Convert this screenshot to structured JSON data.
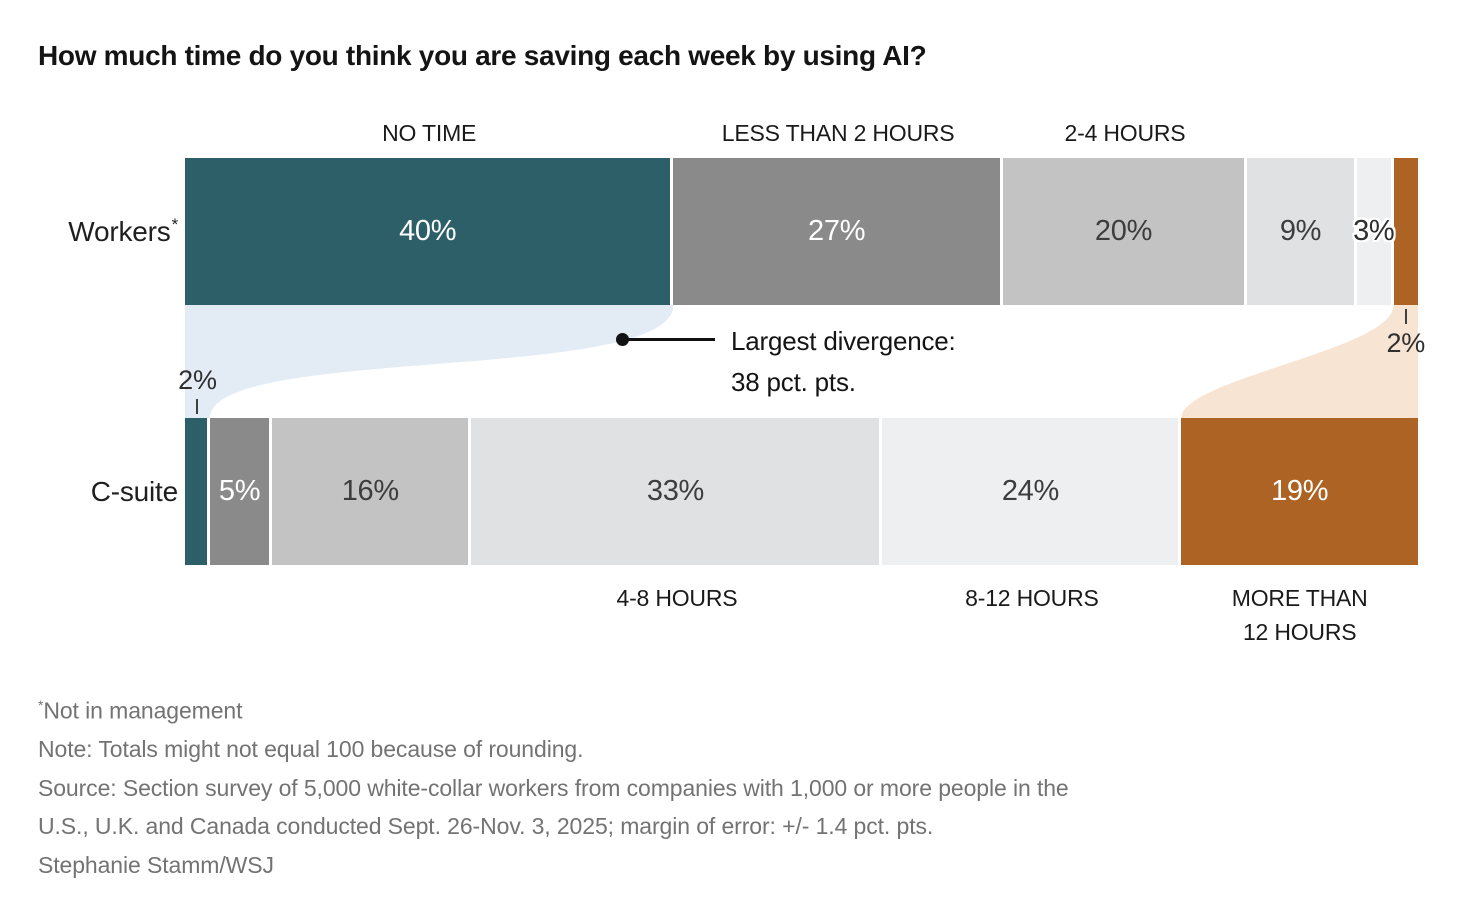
{
  "title": "How much time do you think you are saving each week by using AI?",
  "chart_data": {
    "type": "bar",
    "variant": "stacked-horizontal-comparison",
    "unit": "%",
    "title": "How much time do you think you are saving each week by using AI?",
    "categories": [
      "NO TIME",
      "LESS THAN 2 HOURS",
      "2-4 HOURS",
      "4-8 HOURS",
      "8-12 HOURS",
      "MORE THAN 12 HOURS"
    ],
    "category_label_position": [
      "top",
      "top",
      "top",
      "bottom",
      "bottom",
      "bottom"
    ],
    "series": [
      {
        "name": "Workers",
        "suffix": "*",
        "values": [
          40,
          27,
          20,
          9,
          3,
          2
        ],
        "outside_label_index": 5,
        "outside_label_side": "below"
      },
      {
        "name": "C-suite",
        "suffix": "",
        "values": [
          2,
          5,
          16,
          33,
          24,
          19
        ],
        "outside_label_index": 0,
        "outside_label_side": "above"
      }
    ],
    "label_text_style": [
      "light",
      "light",
      "dark",
      "dark",
      "dark",
      "light"
    ],
    "colors": {
      "categories": [
        "#2d5f68",
        "#8a8a8a",
        "#c3c3c3",
        "#dfe1e3",
        "#edeff0",
        "#ad6323"
      ],
      "flow_no_time": "#e3ecf5",
      "flow_more_than_12": "#f7e4d2",
      "label_light": "#ffffff",
      "label_dark": "#3d3d3d"
    },
    "annotation": {
      "line1": "Largest divergence:",
      "line2": "38 pct. pts."
    },
    "legend_position": "none",
    "grid": false
  },
  "notes": {
    "asterisk_symbol": "*",
    "asterisk_text": "Not in management",
    "rounding_note": "Note: Totals might not equal 100 because of rounding.",
    "source_line1": "Source: Section survey of 5,000 white-collar workers from companies with 1,000 or more people in the",
    "source_line2": "U.S., U.K. and Canada conducted Sept. 26-Nov. 3, 2025; margin of error: +/- 1.4 pct. pts.",
    "credit": "Stephanie Stamm/WSJ"
  }
}
